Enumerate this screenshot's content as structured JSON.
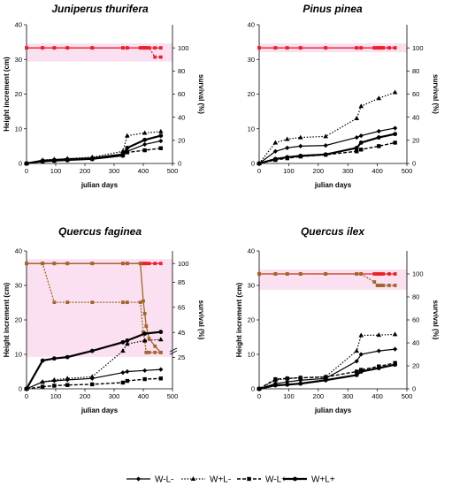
{
  "figure": {
    "legend": [
      {
        "label": "W-L-",
        "dash": "solid",
        "marker": "diamond",
        "width": 1.2
      },
      {
        "label": "W+L-",
        "dash": "dotted",
        "marker": "triangle",
        "width": 1.2
      },
      {
        "label": "W-L+",
        "dash": "dashed",
        "marker": "square",
        "width": 1.4
      },
      {
        "label": "W+L+",
        "dash": "solid",
        "marker": "circle",
        "width": 2.2
      }
    ],
    "colors": {
      "series": "#000000",
      "survival_red": "#e8222a",
      "survival_brown": "#a0662a",
      "highlight": "#f7c6e8"
    }
  },
  "chart_data": [
    {
      "type": "line",
      "title": "Juniperus thurifera",
      "xlabel": "julian days",
      "ylabel": "Height increment (cm)",
      "ylabel_right": "survival (%)",
      "xlim": [
        0,
        500
      ],
      "xticks": [
        "0",
        "100",
        "200",
        "300",
        "400",
        "500"
      ],
      "ylim": [
        0,
        40
      ],
      "yticks": [
        "0",
        "10",
        "20",
        "30",
        "40"
      ],
      "ylim_right": [
        0,
        120
      ],
      "yticks_right": [
        "0",
        "20",
        "40",
        "60",
        "80",
        "100"
      ],
      "survival_color": "red",
      "series": [
        {
          "x": [
            0,
            55,
            95,
            140,
            225,
            330,
            345,
            405,
            460
          ],
          "y": [
            0,
            0.5,
            0.7,
            0.9,
            1.2,
            2.2,
            3.5,
            5.5,
            6.5
          ]
        },
        {
          "x": [
            0,
            55,
            95,
            140,
            225,
            330,
            345,
            405,
            460
          ],
          "y": [
            0,
            1.0,
            1.2,
            1.4,
            1.8,
            3.5,
            8.0,
            8.8,
            9.2
          ]
        },
        {
          "x": [
            0,
            55,
            95,
            140,
            225,
            330,
            345,
            405,
            460
          ],
          "y": [
            0,
            0.6,
            0.8,
            1.0,
            1.3,
            2.3,
            3.2,
            3.8,
            4.4
          ]
        },
        {
          "x": [
            0,
            55,
            95,
            140,
            225,
            330,
            345,
            405,
            460
          ],
          "y": [
            0,
            0.8,
            1.0,
            1.2,
            1.5,
            2.6,
            4.5,
            6.8,
            8.0
          ]
        }
      ],
      "survival": [
        {
          "x": [
            0,
            55,
            95,
            140,
            225,
            330,
            345,
            390,
            400,
            405,
            410,
            420,
            440,
            460
          ],
          "y": [
            100,
            100,
            100,
            100,
            100,
            100,
            100,
            100,
            100,
            100,
            100,
            100,
            100,
            100
          ]
        },
        {
          "x": [
            0,
            55,
            95,
            140,
            225,
            330,
            345,
            390,
            400,
            405,
            410,
            420,
            440,
            460
          ],
          "y": [
            100,
            100,
            100,
            100,
            100,
            100,
            100,
            100,
            100,
            100,
            100,
            100,
            92,
            92
          ]
        }
      ]
    },
    {
      "type": "line",
      "title": "Pinus pinea",
      "xlabel": "julian days",
      "ylabel": "",
      "ylabel_right": "survival (%)",
      "xlim": [
        0,
        500
      ],
      "xticks": [
        "0",
        "100",
        "200",
        "300",
        "400",
        "500"
      ],
      "ylim": [
        0,
        40
      ],
      "yticks": [
        "0",
        "10",
        "20",
        "30",
        "40"
      ],
      "ylim_right": [
        0,
        120
      ],
      "yticks_right": [
        "0",
        "20",
        "40",
        "60",
        "80",
        "100"
      ],
      "survival_color": "red",
      "series": [
        {
          "x": [
            0,
            55,
            95,
            140,
            225,
            330,
            345,
            405,
            460
          ],
          "y": [
            0,
            3.5,
            4.5,
            5.0,
            5.2,
            7.5,
            8.0,
            9.3,
            10.2
          ]
        },
        {
          "x": [
            0,
            55,
            95,
            140,
            225,
            330,
            345,
            405,
            460
          ],
          "y": [
            0,
            6.0,
            7.0,
            7.5,
            7.8,
            13.0,
            16.5,
            18.8,
            20.5
          ]
        },
        {
          "x": [
            0,
            55,
            95,
            140,
            225,
            330,
            345,
            405,
            460
          ],
          "y": [
            0,
            1.0,
            1.5,
            2.0,
            2.5,
            3.5,
            4.0,
            5.0,
            6.0
          ]
        },
        {
          "x": [
            0,
            55,
            95,
            140,
            225,
            330,
            345,
            405,
            460
          ],
          "y": [
            0,
            1.3,
            1.8,
            2.2,
            2.6,
            4.5,
            6.0,
            7.5,
            8.5
          ]
        }
      ],
      "survival": [
        {
          "x": [
            0,
            55,
            95,
            140,
            225,
            330,
            345,
            390,
            400,
            405,
            410,
            420,
            440,
            460
          ],
          "y": [
            100,
            100,
            100,
            100,
            100,
            100,
            100,
            100,
            100,
            100,
            100,
            100,
            100,
            100
          ]
        },
        {
          "x": [
            0,
            55,
            95,
            140,
            225,
            330,
            345,
            390,
            400,
            405,
            410,
            420,
            440,
            460
          ],
          "y": [
            100,
            100,
            100,
            100,
            100,
            100,
            100,
            100,
            100,
            100,
            100,
            100,
            100,
            100
          ]
        }
      ]
    },
    {
      "type": "line",
      "title": "Quercus faginea",
      "xlabel": "julian days",
      "ylabel": "Height increment (cm)",
      "ylabel_right": "survival (%)",
      "xlim": [
        0,
        500
      ],
      "xticks": [
        "0",
        "100",
        "200",
        "300",
        "400",
        "500"
      ],
      "ylim": [
        0,
        40
      ],
      "yticks": [
        "0",
        "10",
        "20",
        "30",
        "40"
      ],
      "ylim_right": [
        0,
        110
      ],
      "yticks_right": [
        "25",
        "45",
        "65",
        "85",
        "100"
      ],
      "survival_color": "brown",
      "axis_break": true,
      "series": [
        {
          "x": [
            0,
            55,
            95,
            140,
            225,
            330,
            345,
            405,
            460
          ],
          "y": [
            0,
            2.0,
            2.3,
            2.6,
            3.0,
            4.7,
            5.0,
            5.3,
            5.6
          ]
        },
        {
          "x": [
            0,
            55,
            95,
            140,
            225,
            330,
            345,
            405,
            460
          ],
          "y": [
            0,
            2.0,
            2.6,
            3.0,
            3.5,
            11.0,
            13.0,
            14.0,
            14.3
          ]
        },
        {
          "x": [
            0,
            55,
            95,
            140,
            225,
            330,
            345,
            405,
            460
          ],
          "y": [
            0,
            0.6,
            0.9,
            1.1,
            1.3,
            1.8,
            2.3,
            2.8,
            3.0
          ]
        },
        {
          "x": [
            0,
            55,
            95,
            140,
            225,
            330,
            345,
            405,
            460
          ],
          "y": [
            0,
            8.2,
            8.8,
            9.2,
            11.0,
            13.5,
            14.0,
            16.0,
            16.5
          ]
        }
      ],
      "survival": [
        {
          "x": [
            0,
            55,
            95,
            140,
            225,
            330,
            345,
            390,
            400,
            405,
            410,
            420,
            440,
            460
          ],
          "y": [
            100,
            100,
            100,
            100,
            100,
            100,
            100,
            100,
            100,
            100,
            100,
            100,
            100,
            100
          ]
        },
        {
          "x": [
            0,
            55,
            95,
            140,
            225,
            330,
            345,
            390,
            400,
            405,
            410,
            420,
            440,
            460
          ],
          "y": [
            100,
            100,
            69,
            69,
            69,
            69,
            69,
            69,
            45,
            38,
            29,
            29,
            29,
            29
          ]
        },
        {
          "x": [
            0,
            55,
            95,
            140,
            225,
            330,
            345,
            390,
            400,
            405,
            410,
            420,
            440,
            460
          ],
          "y": [
            100,
            100,
            100,
            100,
            100,
            100,
            100,
            100,
            70,
            60,
            50,
            40,
            34,
            29
          ]
        }
      ]
    },
    {
      "type": "line",
      "title": "Quercus ilex",
      "xlabel": "julian days",
      "ylabel": "Height increment (cm)",
      "ylabel_right": "survival (%)",
      "xlim": [
        0,
        500
      ],
      "xticks": [
        "0",
        "100",
        "200",
        "300",
        "400",
        "500"
      ],
      "ylim": [
        0,
        40
      ],
      "yticks": [
        "0",
        "10",
        "20",
        "30",
        "40"
      ],
      "ylim_right": [
        0,
        120
      ],
      "yticks_right": [
        "0",
        "20",
        "40",
        "60",
        "80",
        "100"
      ],
      "survival_color": "brown",
      "series": [
        {
          "x": [
            0,
            55,
            95,
            140,
            225,
            330,
            345,
            405,
            460
          ],
          "y": [
            0,
            1.5,
            2.0,
            2.5,
            3.0,
            8.0,
            10.0,
            11.0,
            11.5
          ]
        },
        {
          "x": [
            0,
            55,
            95,
            140,
            225,
            330,
            345,
            405,
            460
          ],
          "y": [
            0,
            2.5,
            3.0,
            3.2,
            3.5,
            11.0,
            15.5,
            15.6,
            15.8
          ]
        },
        {
          "x": [
            0,
            55,
            95,
            140,
            225,
            330,
            345,
            405,
            460
          ],
          "y": [
            0,
            2.8,
            3.0,
            3.2,
            3.4,
            5.0,
            5.5,
            6.5,
            7.5
          ]
        },
        {
          "x": [
            0,
            55,
            95,
            140,
            225,
            330,
            345,
            405,
            460
          ],
          "y": [
            0,
            1.0,
            1.2,
            1.5,
            2.5,
            4.0,
            5.0,
            6.0,
            7.0
          ]
        }
      ],
      "survival": [
        {
          "x": [
            0,
            55,
            95,
            140,
            225,
            330,
            345,
            390,
            400,
            405,
            410,
            420,
            440,
            460
          ],
          "y": [
            100,
            100,
            100,
            100,
            100,
            100,
            100,
            100,
            100,
            100,
            100,
            100,
            100,
            100
          ]
        },
        {
          "x": [
            0,
            55,
            95,
            140,
            225,
            330,
            345,
            390,
            400,
            405,
            410,
            420,
            440,
            460
          ],
          "y": [
            100,
            100,
            100,
            100,
            100,
            100,
            100,
            93,
            90,
            90,
            90,
            90,
            90,
            90
          ]
        }
      ]
    }
  ]
}
